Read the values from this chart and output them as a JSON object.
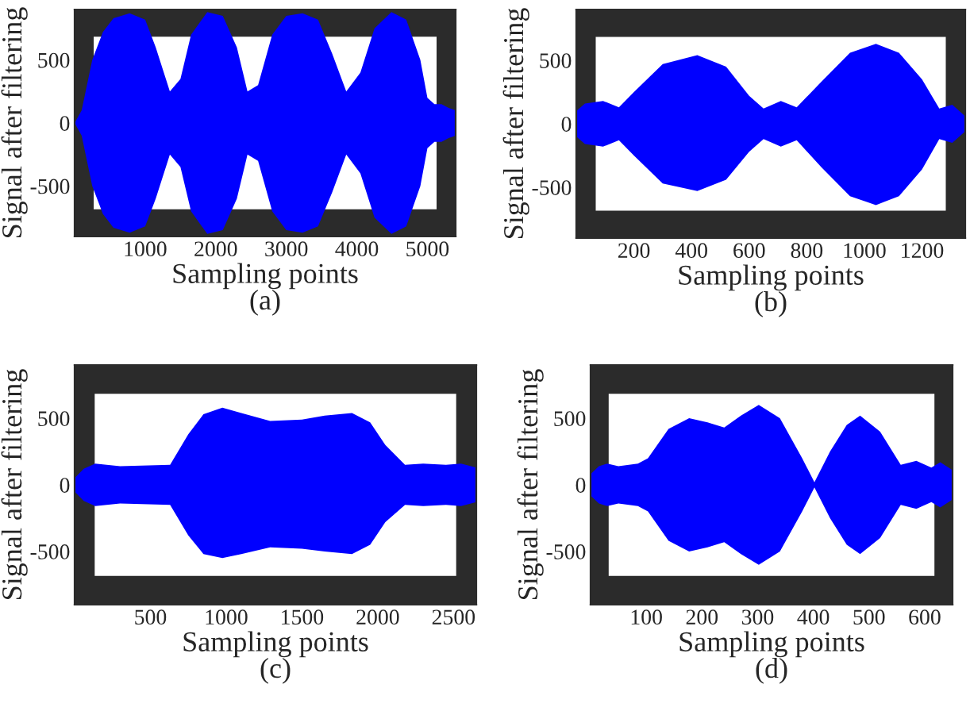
{
  "chart_data": [
    {
      "type": "area",
      "title": "(a)",
      "xlabel": "Sampling points",
      "ylabel": "Signal after filtering",
      "xlim": [
        0,
        5400
      ],
      "xticks": [
        1000,
        2000,
        3000,
        4000,
        5000
      ],
      "ylim": [
        -900,
        900
      ],
      "yticks": [
        -500,
        0,
        500
      ],
      "legend": false,
      "grid": false,
      "series": [
        {
          "color": "#0000ff",
          "x": [
            0,
            100,
            250,
            400,
            550,
            780,
            1000,
            1150,
            1350,
            1500,
            1650,
            1880,
            2100,
            2300,
            2450,
            2600,
            2800,
            3000,
            3230,
            3450,
            3650,
            3850,
            4050,
            4250,
            4490,
            4700,
            4900,
            5000,
            5100,
            5200,
            5300,
            5400
          ],
          "values": [
            0,
            100,
            500,
            720,
            830,
            870,
            820,
            600,
            250,
            350,
            700,
            880,
            850,
            600,
            250,
            300,
            700,
            850,
            870,
            820,
            550,
            250,
            400,
            750,
            880,
            820,
            500,
            200,
            150,
            150,
            120,
            100
          ]
        },
        {
          "color": "#0000ff",
          "x": [
            0,
            100,
            250,
            400,
            550,
            780,
            1000,
            1150,
            1350,
            1500,
            1650,
            1880,
            2100,
            2300,
            2450,
            2600,
            2800,
            3000,
            3230,
            3450,
            3650,
            3850,
            4050,
            4250,
            4490,
            4700,
            4900,
            5000,
            5100,
            5200,
            5300,
            5400
          ],
          "values": [
            0,
            -100,
            -500,
            -720,
            -830,
            -870,
            -820,
            -600,
            -250,
            -350,
            -700,
            -880,
            -850,
            -600,
            -250,
            -300,
            -700,
            -850,
            -870,
            -820,
            -550,
            -250,
            -400,
            -750,
            -880,
            -820,
            -500,
            -200,
            -150,
            -150,
            -120,
            -100
          ]
        }
      ]
    },
    {
      "type": "area",
      "title": "(b)",
      "xlabel": "Sampling points",
      "ylabel": "Signal after filtering",
      "xlim": [
        0,
        1350
      ],
      "xticks": [
        200,
        400,
        600,
        800,
        1000,
        1200
      ],
      "ylim": [
        -900,
        900
      ],
      "yticks": [
        -500,
        0,
        500
      ],
      "legend": false,
      "grid": false,
      "series": [
        {
          "color": "#0000ff",
          "x": [
            0,
            30,
            93,
            148,
            200,
            300,
            420,
            520,
            600,
            650,
            710,
            765,
            850,
            950,
            1040,
            1120,
            1200,
            1260,
            1305,
            1350
          ],
          "values": [
            100,
            160,
            180,
            130,
            250,
            470,
            540,
            450,
            220,
            120,
            180,
            130,
            330,
            560,
            630,
            560,
            350,
            120,
            150,
            60
          ]
        },
        {
          "color": "#0000ff",
          "x": [
            0,
            30,
            93,
            148,
            200,
            300,
            420,
            520,
            600,
            650,
            710,
            765,
            850,
            950,
            1040,
            1120,
            1200,
            1260,
            1305,
            1350
          ],
          "values": [
            -100,
            -160,
            -180,
            -130,
            -250,
            -470,
            -530,
            -440,
            -220,
            -120,
            -180,
            -130,
            -340,
            -570,
            -640,
            -570,
            -360,
            -120,
            -150,
            -60
          ]
        }
      ]
    },
    {
      "type": "area",
      "title": "(c)",
      "xlabel": "Sampling points",
      "ylabel": "Signal after filtering",
      "xlim": [
        0,
        2650
      ],
      "xticks": [
        500,
        1000,
        1500,
        2000,
        2500
      ],
      "ylim": [
        -900,
        900
      ],
      "yticks": [
        -500,
        0,
        500
      ],
      "legend": false,
      "grid": false,
      "series": [
        {
          "color": "#0000ff",
          "x": [
            0,
            60,
            136,
            300,
            630,
            750,
            850,
            975,
            1100,
            1290,
            1500,
            1650,
            1830,
            1950,
            2050,
            2180,
            2300,
            2450,
            2550,
            2650
          ],
          "values": [
            50,
            120,
            160,
            140,
            150,
            380,
            530,
            580,
            540,
            480,
            490,
            520,
            540,
            470,
            300,
            150,
            160,
            150,
            160,
            130
          ]
        },
        {
          "color": "#0000ff",
          "x": [
            0,
            60,
            136,
            300,
            630,
            750,
            850,
            975,
            1100,
            1290,
            1500,
            1650,
            1830,
            1950,
            2050,
            2180,
            2300,
            2450,
            2550,
            2650
          ],
          "values": [
            -50,
            -120,
            -160,
            -140,
            -150,
            -380,
            -520,
            -550,
            -520,
            -470,
            -480,
            -500,
            -520,
            -450,
            -280,
            -150,
            -160,
            -150,
            -160,
            -130
          ]
        }
      ]
    },
    {
      "type": "area",
      "title": "(d)",
      "xlabel": "Sampling points",
      "ylabel": "Signal after filtering",
      "xlim": [
        0,
        650
      ],
      "xticks": [
        100,
        200,
        300,
        400,
        500,
        600
      ],
      "ylim": [
        -900,
        900
      ],
      "yticks": [
        -500,
        0,
        500
      ],
      "legend": false,
      "grid": false,
      "series": [
        {
          "color": "#0000ff",
          "x": [
            0,
            15,
            30,
            50,
            85,
            103,
            140,
            177,
            210,
            240,
            270,
            302,
            340,
            380,
            402,
            430,
            460,
            484,
            520,
            557,
            585,
            612,
            628,
            650
          ],
          "values": [
            80,
            140,
            160,
            140,
            160,
            200,
            420,
            500,
            470,
            430,
            520,
            600,
            500,
            200,
            20,
            250,
            450,
            520,
            400,
            150,
            180,
            130,
            170,
            110
          ]
        },
        {
          "color": "#0000ff",
          "x": [
            0,
            15,
            30,
            50,
            85,
            103,
            140,
            177,
            210,
            240,
            270,
            302,
            340,
            380,
            402,
            430,
            460,
            484,
            520,
            557,
            585,
            612,
            628,
            650
          ],
          "values": [
            -80,
            -140,
            -160,
            -140,
            -160,
            -200,
            -420,
            -500,
            -470,
            -430,
            -520,
            -600,
            -500,
            -200,
            -20,
            -250,
            -450,
            -520,
            -400,
            -150,
            -180,
            -130,
            -170,
            -110
          ]
        }
      ]
    }
  ]
}
